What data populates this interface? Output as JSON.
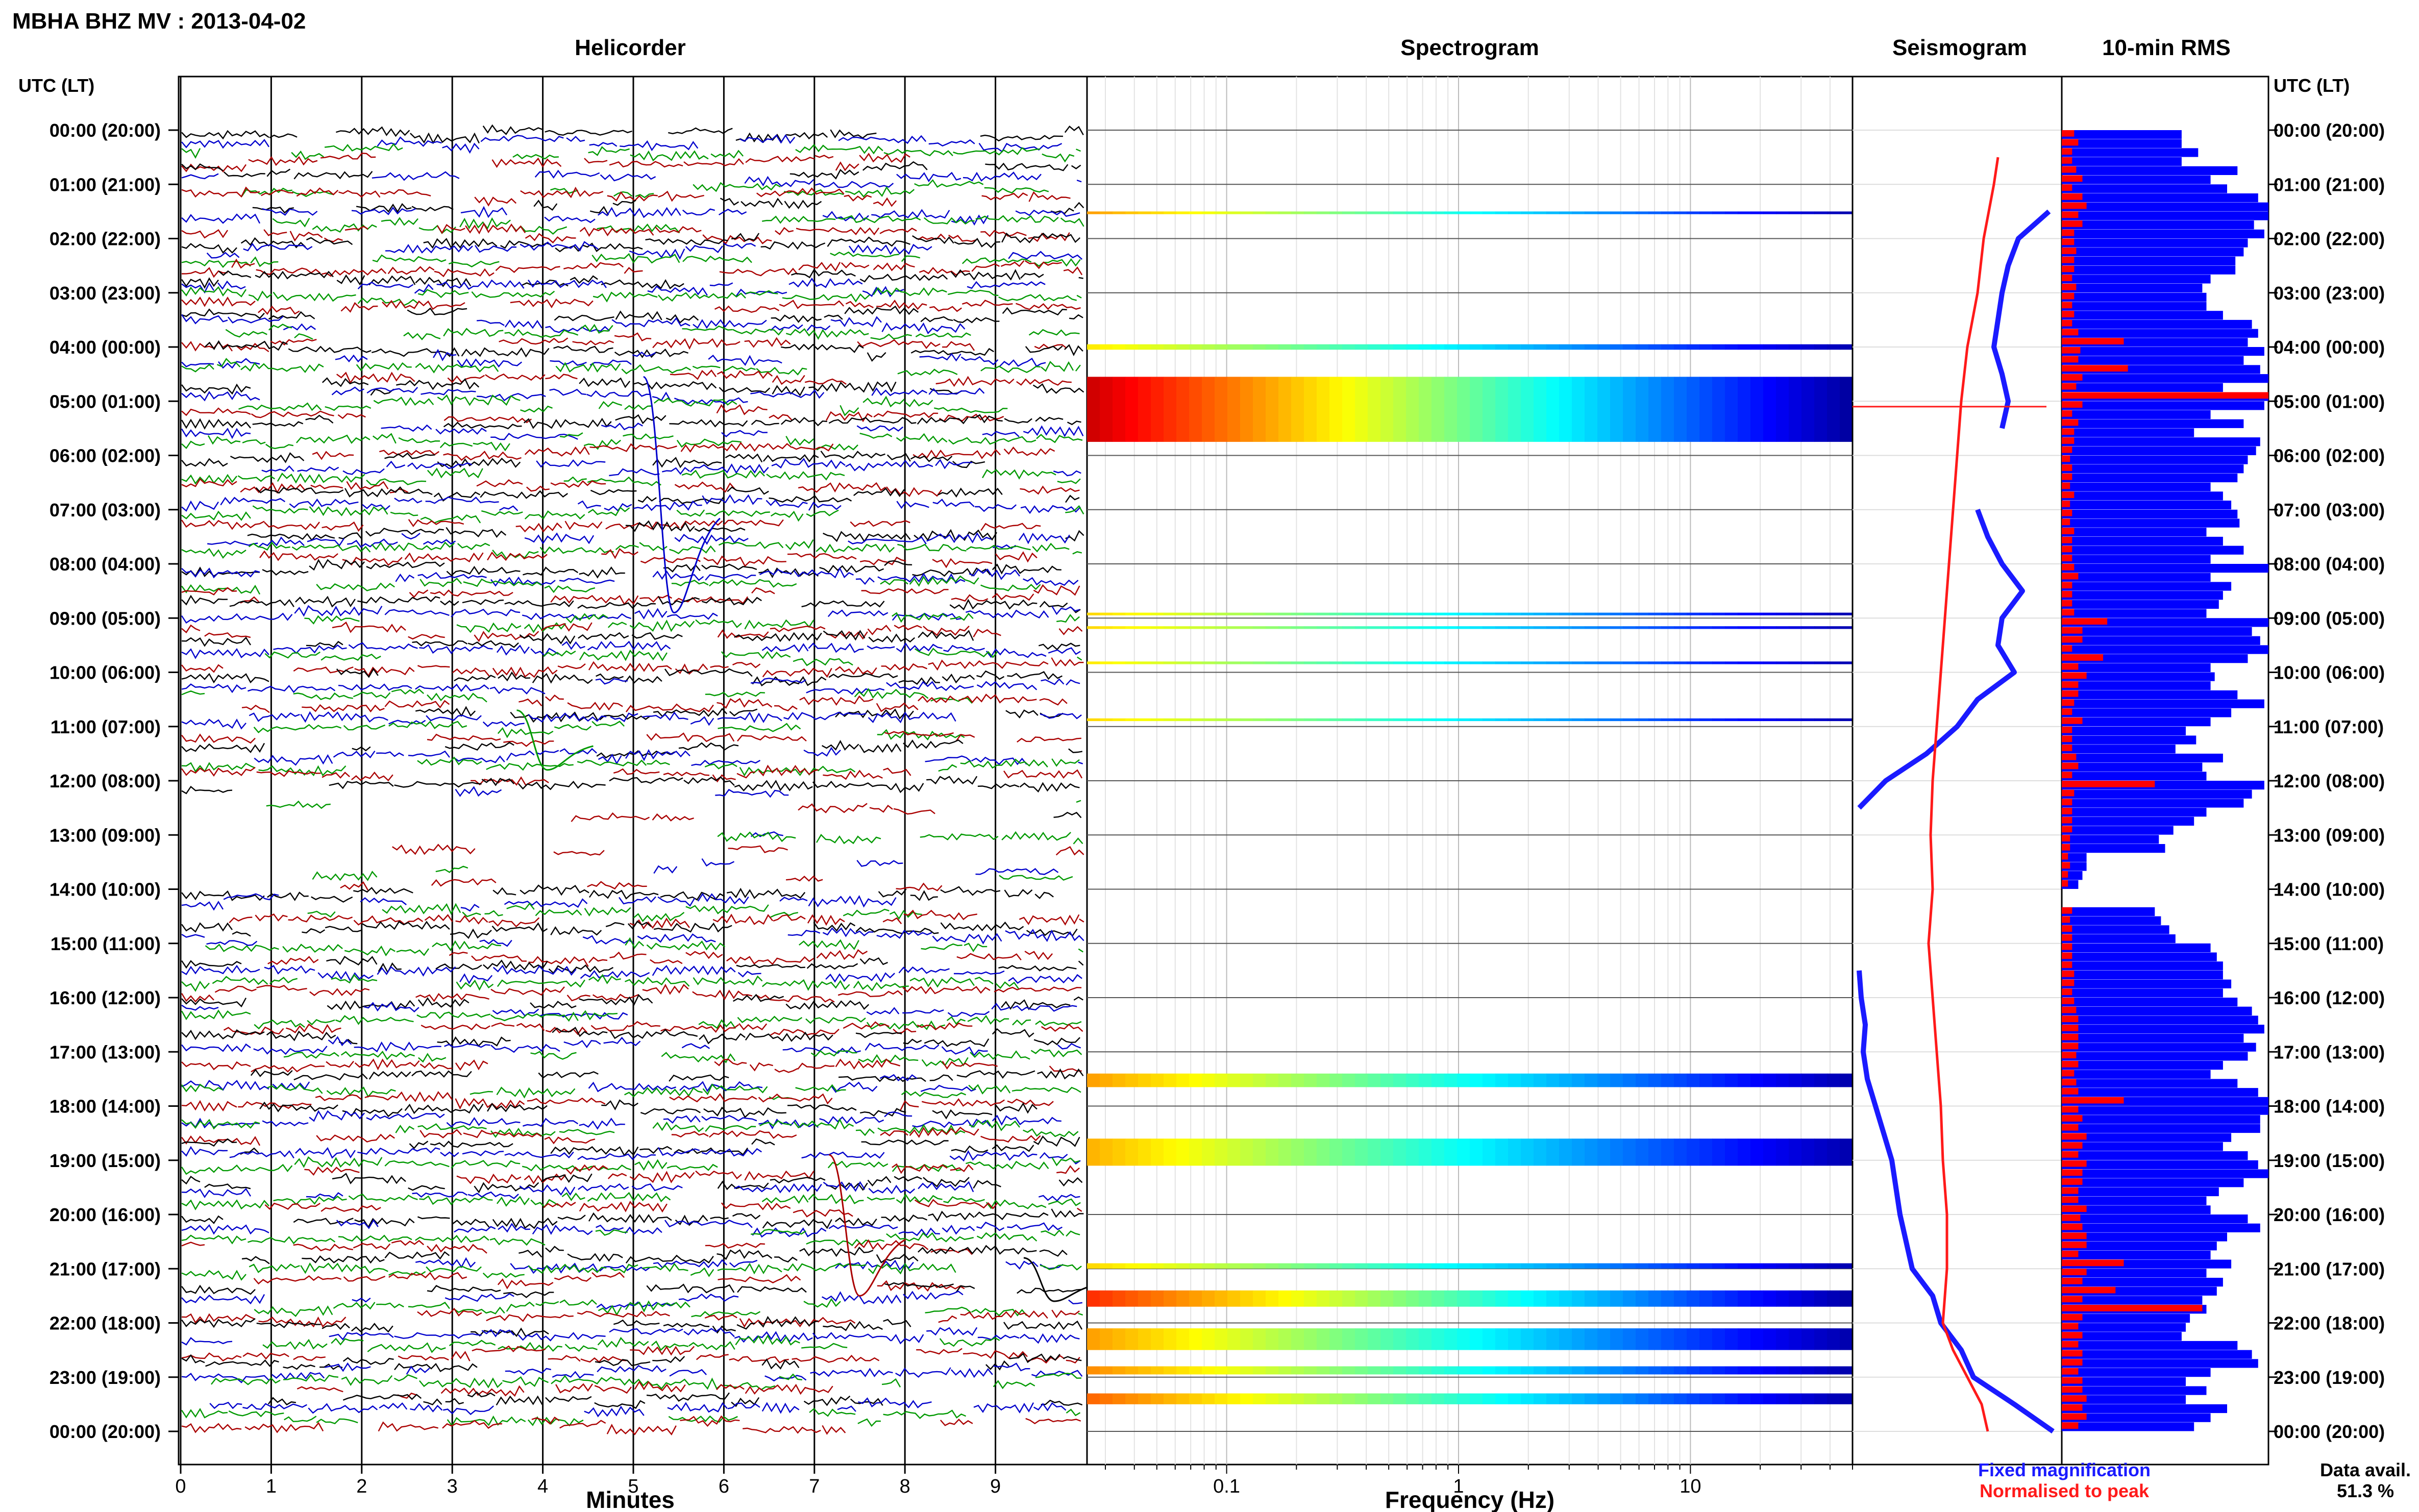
{
  "header": {
    "title": "MBHA BHZ MV : 2013-04-02"
  },
  "panels": {
    "helicorder": "Helicorder",
    "spectrogram": "Spectrogram",
    "seismogram": "Seismogram",
    "rms": "10-min RMS"
  },
  "axes": {
    "left_header": "UTC (LT)",
    "right_header": "UTC (LT)",
    "minutes_label": "Minutes",
    "frequency_label": "Frequency (Hz)"
  },
  "legend": {
    "fixed": "Fixed magnification",
    "normalised": "Normalised to peak",
    "fixed_color": "#1a1aff",
    "normalised_color": "#ff1a1a"
  },
  "data_availability": {
    "label": "Data avail.",
    "value": "51.3 %"
  },
  "chart_data": [
    {
      "type": "line",
      "panel": "helicorder",
      "title": "Helicorder",
      "xlabel": "Minutes",
      "xlim": [
        0,
        10
      ],
      "x_ticks": [
        "0",
        "1",
        "2",
        "3",
        "4",
        "5",
        "6",
        "7",
        "8",
        "9"
      ],
      "y_ticks": [
        "00:00 (20:00)",
        "01:00 (21:00)",
        "02:00 (22:00)",
        "03:00 (23:00)",
        "04:00 (00:00)",
        "05:00 (01:00)",
        "06:00 (02:00)",
        "07:00 (03:00)",
        "08:00 (04:00)",
        "09:00 (05:00)",
        "10:00 (06:00)",
        "11:00 (07:00)",
        "12:00 (08:00)",
        "13:00 (09:00)",
        "14:00 (10:00)",
        "15:00 (11:00)",
        "16:00 (12:00)",
        "17:00 (13:00)",
        "18:00 (14:00)",
        "19:00 (15:00)",
        "20:00 (16:00)",
        "21:00 (17:00)",
        "22:00 (18:00)",
        "23:00 (19:00)",
        "00:00 (20:00)"
      ],
      "trace_colors": [
        "#000000",
        "#0000cc",
        "#009900",
        "#aa0000"
      ],
      "traces_per_hour": 6,
      "trace_minutes": 10
    },
    {
      "type": "heatmap",
      "panel": "spectrogram",
      "title": "Spectrogram",
      "xlabel": "Frequency (Hz)",
      "x_scale": "log",
      "xlim": [
        0.025,
        50
      ],
      "x_ticks": [
        "0.1",
        "1",
        "10"
      ],
      "colormap": "jet",
      "active_hours": [
        {
          "start": 1.5,
          "end": 1.55,
          "level": 0.45
        },
        {
          "start": 3.95,
          "end": 4.05,
          "level": 0.25
        },
        {
          "start": 4.55,
          "end": 5.75,
          "level": 1.0
        },
        {
          "start": 8.9,
          "end": 8.95,
          "level": 0.3
        },
        {
          "start": 9.15,
          "end": 9.2,
          "level": 0.3
        },
        {
          "start": 9.8,
          "end": 9.85,
          "level": 0.25
        },
        {
          "start": 10.85,
          "end": 10.9,
          "level": 0.3
        },
        {
          "start": 17.4,
          "end": 17.65,
          "level": 0.45
        },
        {
          "start": 18.6,
          "end": 19.1,
          "level": 0.4
        },
        {
          "start": 20.9,
          "end": 21.0,
          "level": 0.3
        },
        {
          "start": 21.4,
          "end": 21.7,
          "level": 0.75
        },
        {
          "start": 22.1,
          "end": 22.5,
          "level": 0.45
        },
        {
          "start": 22.8,
          "end": 22.95,
          "level": 0.5
        },
        {
          "start": 23.3,
          "end": 23.5,
          "level": 0.6
        }
      ]
    },
    {
      "type": "line",
      "panel": "seismogram",
      "title": "Seismogram",
      "series": [
        {
          "name": "Fixed magnification",
          "color": "#1a1aff",
          "hours": [
            0,
            1,
            1.5,
            2,
            2.5,
            3,
            3.5,
            4,
            4.5,
            5,
            5.5,
            6,
            6.5,
            7,
            7.5,
            8,
            8.5,
            9,
            9.5,
            10,
            10.5,
            11,
            11.5,
            12,
            12.5,
            13,
            13.5,
            14,
            14.5,
            15,
            15.5,
            16,
            16.5,
            17,
            17.5,
            18,
            18.5,
            19,
            19.5,
            20,
            20.5,
            21,
            21.5,
            22,
            22.5,
            23,
            23.5,
            24
          ],
          "values": [
            null,
            null,
            0.95,
            0.8,
            0.75,
            0.72,
            0.7,
            0.68,
            0.72,
            0.75,
            0.72,
            null,
            null,
            0.6,
            0.65,
            0.72,
            0.82,
            0.72,
            0.7,
            0.78,
            0.6,
            0.5,
            0.35,
            0.15,
            0.02,
            null,
            null,
            null,
            null,
            null,
            0.02,
            0.03,
            0.05,
            0.04,
            0.06,
            0.1,
            0.14,
            0.18,
            0.2,
            0.22,
            0.25,
            0.28,
            0.38,
            0.42,
            0.52,
            0.58,
            0.78,
            0.97
          ]
        },
        {
          "name": "Normalised to peak",
          "color": "#ff1a1a",
          "hours": [
            0,
            0.5,
            1,
            2,
            3,
            4,
            5,
            6,
            7,
            8,
            9,
            10,
            11,
            12,
            13,
            14,
            15,
            16,
            17,
            18,
            19,
            20,
            21,
            22,
            22.5,
            23,
            23.5,
            24
          ],
          "values": [
            null,
            0.7,
            0.68,
            0.63,
            0.6,
            0.55,
            0.52,
            0.5,
            0.48,
            0.46,
            0.44,
            0.42,
            0.4,
            0.38,
            0.37,
            0.38,
            0.36,
            0.38,
            0.4,
            0.42,
            0.43,
            0.45,
            0.45,
            0.43,
            0.48,
            0.55,
            0.62,
            0.65
          ]
        }
      ]
    },
    {
      "type": "bar",
      "panel": "rms",
      "title": "10-min RMS",
      "bins_per_hour": 6,
      "series": [
        {
          "name": "Fixed magnification",
          "color": "#0000ff",
          "values": [
            0.58,
            0.58,
            0.66,
            0.58,
            0.85,
            0.72,
            0.8,
            0.95,
            1.0,
            1.0,
            0.93,
            0.98,
            0.9,
            0.88,
            0.84,
            0.84,
            0.72,
            0.68,
            0.7,
            0.7,
            0.78,
            0.92,
            0.95,
            0.9,
            0.98,
            0.88,
            0.96,
            1.0,
            0.78,
            1.0,
            0.98,
            0.72,
            0.88,
            0.64,
            0.96,
            0.94,
            0.9,
            0.88,
            0.85,
            0.72,
            0.78,
            0.82,
            0.85,
            0.86,
            0.7,
            0.78,
            0.88,
            0.72,
            1.0,
            0.72,
            0.82,
            0.78,
            0.76,
            0.7,
            1.0,
            0.92,
            0.96,
            1.0,
            0.9,
            0.72,
            0.74,
            0.72,
            0.85,
            0.98,
            0.82,
            0.72,
            0.6,
            0.65,
            0.55,
            0.78,
            0.68,
            0.7,
            0.98,
            0.92,
            0.88,
            0.7,
            0.64,
            0.54,
            0.47,
            0.5,
            0.12,
            0.12,
            0.1,
            0.08,
            null,
            null,
            0.45,
            0.48,
            0.52,
            0.55,
            0.72,
            0.75,
            0.78,
            0.78,
            0.82,
            0.78,
            0.85,
            0.92,
            0.95,
            0.98,
            0.88,
            0.94,
            0.9,
            0.78,
            0.72,
            0.85,
            0.95,
            1.0,
            1.0,
            0.96,
            0.96,
            0.82,
            0.78,
            0.9,
            0.95,
            1.0,
            0.88,
            0.76,
            0.7,
            0.72,
            0.9,
            0.96,
            0.8,
            0.75,
            0.72,
            0.82,
            0.7,
            0.78,
            0.75,
            0.68,
            0.7,
            0.62,
            0.6,
            0.58,
            0.85,
            0.92,
            0.95,
            0.72,
            0.6,
            0.7,
            0.6,
            0.8,
            0.72,
            0.64
          ]
        },
        {
          "name": "Normalised to peak",
          "color": "#ff0000",
          "values": [
            0.06,
            0.08,
            0.05,
            0.05,
            0.07,
            0.1,
            0.05,
            0.1,
            0.12,
            0.08,
            0.1,
            0.06,
            0.06,
            0.07,
            0.06,
            0.06,
            0.05,
            0.07,
            0.06,
            0.05,
            0.06,
            0.05,
            0.08,
            0.3,
            0.09,
            0.08,
            0.32,
            0.1,
            0.07,
            1.0,
            0.1,
            0.05,
            0.08,
            0.06,
            0.06,
            0.05,
            0.04,
            0.05,
            0.05,
            0.04,
            0.06,
            0.04,
            0.05,
            0.04,
            0.06,
            0.05,
            0.05,
            0.05,
            0.06,
            0.08,
            0.05,
            0.05,
            0.05,
            0.06,
            0.22,
            0.1,
            0.1,
            0.05,
            0.2,
            0.08,
            0.12,
            0.08,
            0.08,
            0.06,
            0.05,
            0.1,
            0.05,
            0.05,
            0.05,
            0.07,
            0.08,
            0.05,
            0.45,
            0.06,
            0.05,
            0.05,
            0.05,
            0.05,
            0.04,
            0.04,
            0.03,
            0.04,
            0.03,
            0.03,
            null,
            null,
            0.05,
            0.04,
            0.05,
            0.05,
            0.05,
            0.05,
            0.05,
            0.06,
            0.06,
            0.05,
            0.06,
            0.07,
            0.08,
            0.08,
            0.08,
            0.08,
            0.07,
            0.08,
            0.06,
            0.07,
            0.08,
            0.3,
            0.08,
            0.1,
            0.08,
            0.12,
            0.1,
            0.08,
            0.12,
            0.1,
            0.1,
            0.08,
            0.08,
            0.12,
            0.09,
            0.1,
            0.12,
            0.12,
            0.08,
            0.3,
            0.12,
            0.1,
            0.26,
            0.1,
            0.68,
            0.1,
            0.08,
            0.1,
            0.08,
            0.1,
            0.1,
            0.08,
            0.1,
            0.1,
            0.12,
            0.1,
            0.12,
            0.08
          ]
        }
      ]
    }
  ]
}
